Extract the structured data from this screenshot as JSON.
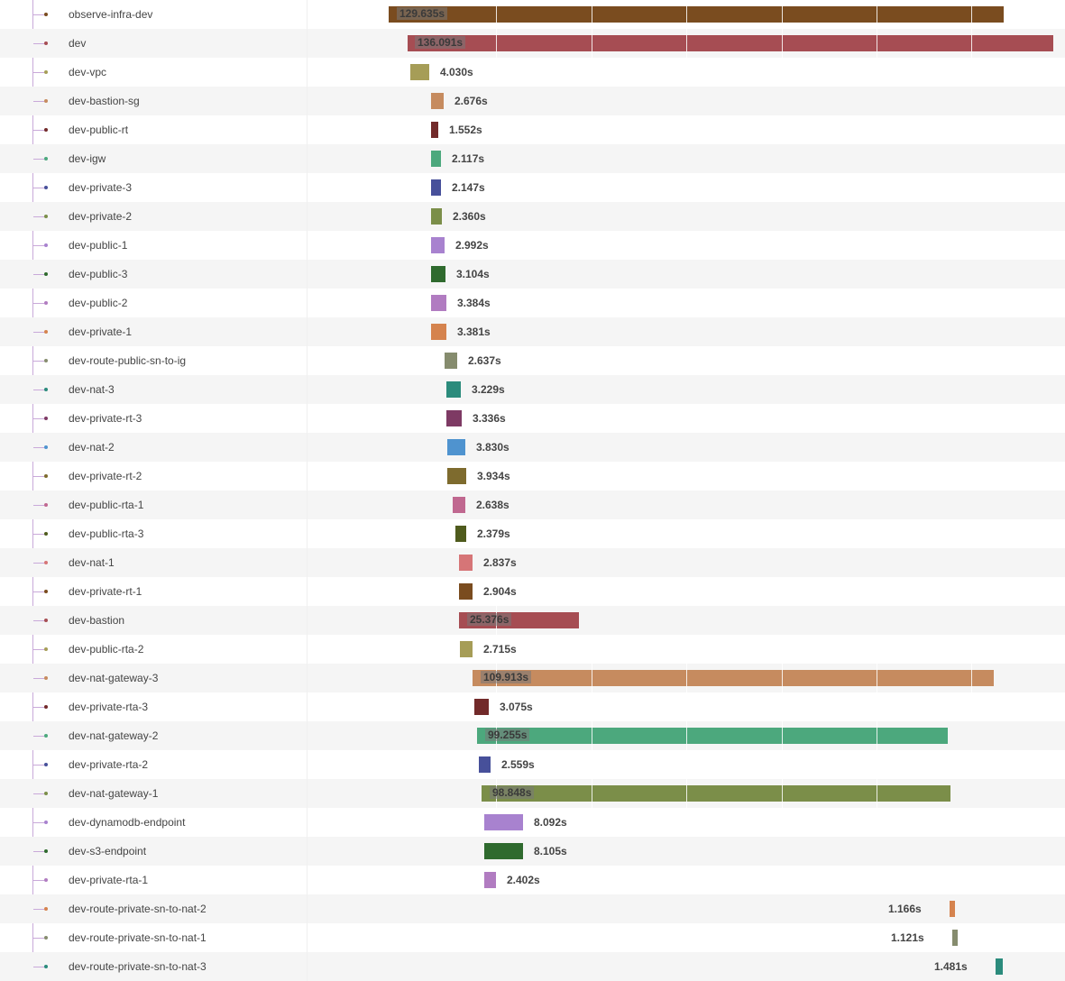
{
  "timeline": {
    "rows": [
      {
        "name": "observe-infra-dev",
        "duration": "129.635s",
        "color": "#7a4c1f",
        "dot": "#7a4c1f"
      },
      {
        "name": "dev",
        "duration": "136.091s",
        "color": "#a64d53",
        "dot": "#a64d53"
      },
      {
        "name": "dev-vpc",
        "duration": "4.030s",
        "color": "#a69d57",
        "dot": "#a69d57"
      },
      {
        "name": "dev-bastion-sg",
        "duration": "2.676s",
        "color": "#c68b5f",
        "dot": "#c68b5f"
      },
      {
        "name": "dev-public-rt",
        "duration": "1.552s",
        "color": "#722a2a",
        "dot": "#722a2a"
      },
      {
        "name": "dev-igw",
        "duration": "2.117s",
        "color": "#4ca87d",
        "dot": "#4ca87d"
      },
      {
        "name": "dev-private-3",
        "duration": "2.147s",
        "color": "#47509a",
        "dot": "#47509a"
      },
      {
        "name": "dev-private-2",
        "duration": "2.360s",
        "color": "#7b8e49",
        "dot": "#7b8e49"
      },
      {
        "name": "dev-public-1",
        "duration": "2.992s",
        "color": "#a882cf",
        "dot": "#a882cf"
      },
      {
        "name": "dev-public-3",
        "duration": "3.104s",
        "color": "#2f6a2e",
        "dot": "#2f6a2e"
      },
      {
        "name": "dev-public-2",
        "duration": "3.384s",
        "color": "#b17cc1",
        "dot": "#b17cc1"
      },
      {
        "name": "dev-private-1",
        "duration": "3.381s",
        "color": "#d5834e",
        "dot": "#d5834e"
      },
      {
        "name": "dev-route-public-sn-to-ig",
        "duration": "2.637s",
        "color": "#868c6e",
        "dot": "#868c6e"
      },
      {
        "name": "dev-nat-3",
        "duration": "3.229s",
        "color": "#2b8b7c",
        "dot": "#2b8b7c"
      },
      {
        "name": "dev-private-rt-3",
        "duration": "3.336s",
        "color": "#7e3a64",
        "dot": "#7e3a64"
      },
      {
        "name": "dev-nat-2",
        "duration": "3.830s",
        "color": "#4f93cf",
        "dot": "#4f93cf"
      },
      {
        "name": "dev-private-rt-2",
        "duration": "3.934s",
        "color": "#7e6b2e",
        "dot": "#7e6b2e"
      },
      {
        "name": "dev-public-rta-1",
        "duration": "2.638s",
        "color": "#c06890",
        "dot": "#c06890"
      },
      {
        "name": "dev-public-rta-3",
        "duration": "2.379s",
        "color": "#4f5b1d",
        "dot": "#4f5b1d"
      },
      {
        "name": "dev-nat-1",
        "duration": "2.837s",
        "color": "#d67577",
        "dot": "#d67577"
      },
      {
        "name": "dev-private-rt-1",
        "duration": "2.904s",
        "color": "#7a4c1f",
        "dot": "#7a4c1f"
      },
      {
        "name": "dev-bastion",
        "duration": "25.376s",
        "color": "#a64d53",
        "dot": "#a64d53"
      },
      {
        "name": "dev-public-rta-2",
        "duration": "2.715s",
        "color": "#a69d57",
        "dot": "#a69d57"
      },
      {
        "name": "dev-nat-gateway-3",
        "duration": "109.913s",
        "color": "#c68b5f",
        "dot": "#c68b5f"
      },
      {
        "name": "dev-private-rta-3",
        "duration": "3.075s",
        "color": "#722a2a",
        "dot": "#722a2a"
      },
      {
        "name": "dev-nat-gateway-2",
        "duration": "99.255s",
        "color": "#4ca87d",
        "dot": "#4ca87d"
      },
      {
        "name": "dev-private-rta-2",
        "duration": "2.559s",
        "color": "#47509a",
        "dot": "#47509a"
      },
      {
        "name": "dev-nat-gateway-1",
        "duration": "98.848s",
        "color": "#7b8e49",
        "dot": "#7b8e49"
      },
      {
        "name": "dev-dynamodb-endpoint",
        "duration": "8.092s",
        "color": "#a882cf",
        "dot": "#a882cf"
      },
      {
        "name": "dev-s3-endpoint",
        "duration": "8.105s",
        "color": "#2f6a2e",
        "dot": "#2f6a2e"
      },
      {
        "name": "dev-private-rta-1",
        "duration": "2.402s",
        "color": "#b17cc1",
        "dot": "#b17cc1"
      },
      {
        "name": "dev-route-private-sn-to-nat-2",
        "duration": "1.166s",
        "color": "#d5834e",
        "dot": "#d5834e"
      },
      {
        "name": "dev-route-private-sn-to-nat-1",
        "duration": "1.121s",
        "color": "#868c6e",
        "dot": "#868c6e"
      },
      {
        "name": "dev-route-private-sn-to-nat-3",
        "duration": "1.481s",
        "color": "#2b8b7c",
        "dot": "#2b8b7c"
      }
    ]
  }
}
